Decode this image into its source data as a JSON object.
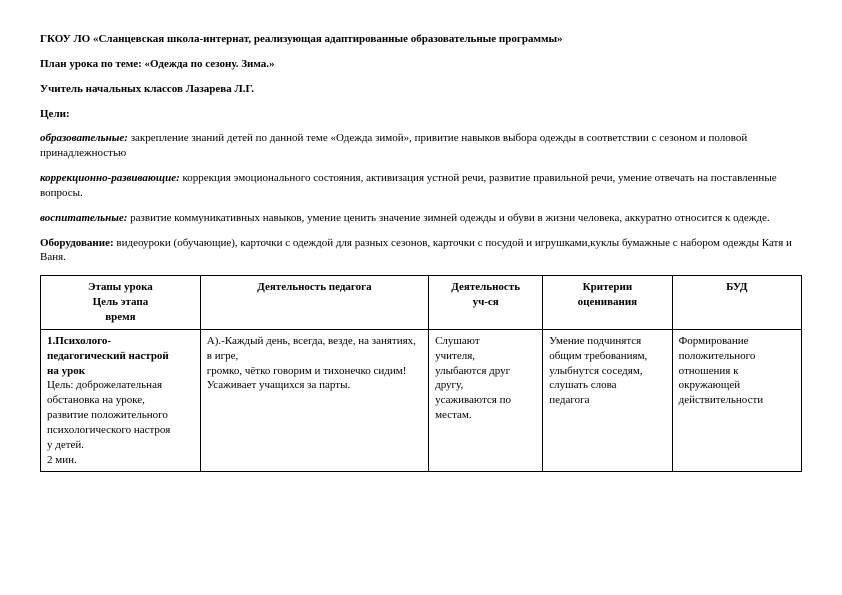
{
  "header": {
    "institution": "ГКОУ ЛО «Сланцевская школа-интернат, реализующая адаптированные образовательные программы»",
    "plan_label": "План урока  по теме: «Одежда по сезону. Зима.»",
    "teacher_label": "Учитель начальных классов  Лазарева Л.Г.",
    "goals_label": "Цели:",
    "edu_label": "образовательные:",
    "edu_text": " закрепление знаний детей по данной теме «Одежда зимой»,   привитие навыков выбора одежды в соответствии с сезоном и половой принадлежностью",
    "corr_label": "коррекционно-развивающие:",
    "corr_text": "  коррекция эмоционального состояния, активизация устной речи, развитие  правильной речи, умение отвечать на поставленные вопросы.",
    "vosp_label": "воспитательные:",
    "vosp_text": "  развитие коммуникативных навыков, умение ценить  значение зимней  одежды и обуви в жизни человека, аккуратно относится к одежде.",
    "equip_label": "Оборудование:",
    "equip_text": " видеоуроки (обучающие), карточки с одеждой для разных сезонов, карточки с посудой и игрушками,куклы бумажные с набором одежды Катя и Ваня."
  },
  "table": {
    "headers": {
      "c1a": "Этапы урока",
      "c1b": "Цель этапа",
      "c1c": "время",
      "c2": "Деятельность педагога",
      "c3a": "Деятельность",
      "c3b": "уч-ся",
      "c4a": "Критерии",
      "c4b": "оценивания",
      "c5": "БУД"
    },
    "row1": {
      "c1_b1": "1.Психолого-",
      "c1_b2": "педагогический настрой",
      "c1_b3": "на урок",
      "c1_p_prefix": "Цель: ",
      "c1_p1": "доброжелательная",
      "c1_p2": "обстановка на уроке,",
      "c1_p3": "развитие положительного",
      "c1_p4": "психологического настроя",
      "c1_p5": "у детей.",
      "c1_p6": "2 мин.",
      "c2_l1": "А).-Каждый день, всегда, везде, на занятиях, в игре,",
      "c2_l2": "громко, чётко говорим и тихонечко сидим!",
      "c2_l3": "Усаживает учащихся за парты.",
      "c3_l1": "Слушают",
      "c3_l2": "учителя,",
      "c3_l3": "улыбаются друг",
      "c3_l4": "другу,",
      "c3_l5": "усаживаются по",
      "c3_l6": "местам.",
      "c4_l1": "Умение подчинятся",
      "c4_l2": "общим требованиям,",
      "c4_l3": "улыбнутся соседям,",
      "c4_l4": "слушать слова",
      "c4_l5": "педагога",
      "c5_l1": "Формирование",
      "c5_l2": "положительного",
      "c5_l3": "отношения к",
      "c5_l4": "окружающей",
      "c5_l5": "действительности"
    }
  }
}
